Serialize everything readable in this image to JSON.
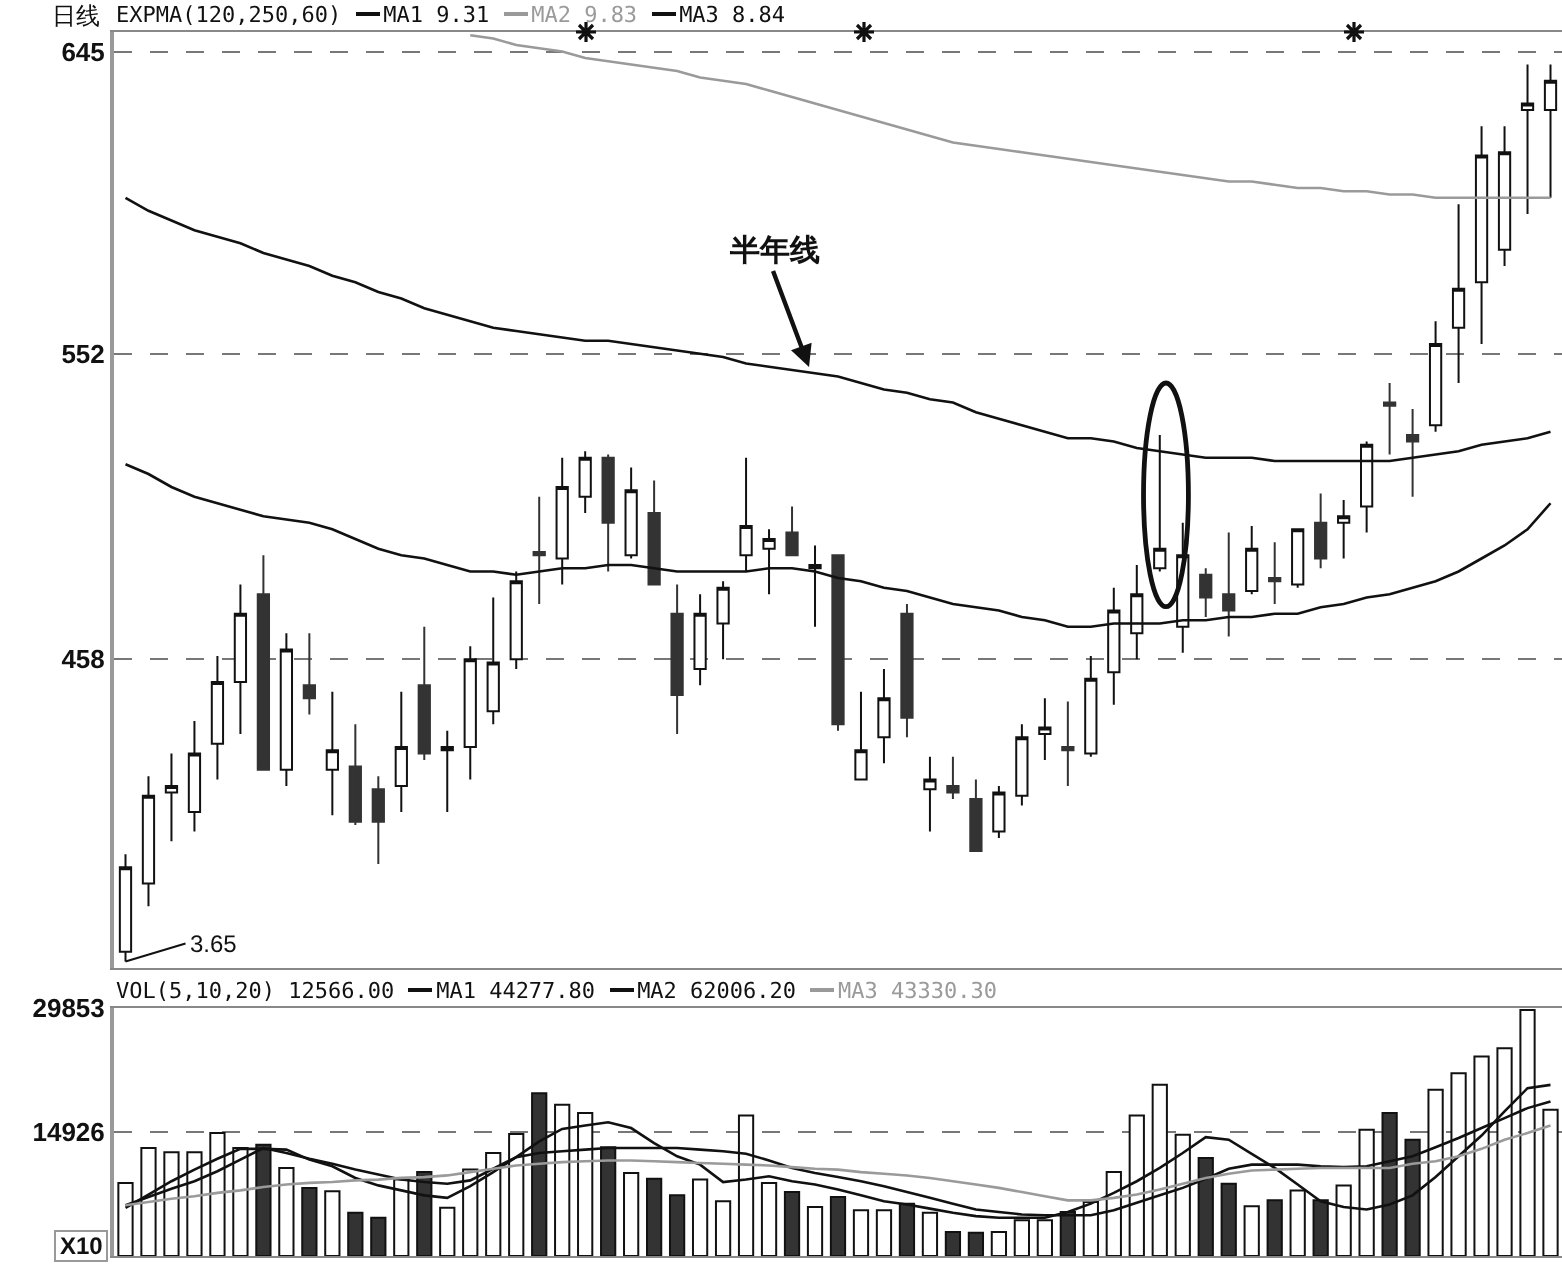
{
  "chart_data": [
    {
      "type": "candlestick",
      "title": "日线",
      "legend_title": "EXPMA(120,250,60)",
      "annotations": [
        "半年线",
        "3.65"
      ],
      "categories": [
        null,
        null,
        null,
        null,
        null,
        null,
        null,
        null,
        null,
        null,
        null,
        null,
        null,
        null,
        null,
        null,
        null,
        null,
        null,
        null,
        null,
        null,
        null,
        null,
        null,
        null,
        null,
        null,
        null,
        null,
        null,
        null,
        null,
        null,
        null,
        null,
        null,
        null,
        null,
        null,
        null,
        null,
        null,
        null,
        null,
        null,
        null,
        null,
        null,
        null,
        null,
        null,
        null,
        null,
        null,
        null,
        null,
        null,
        null,
        null,
        null,
        null,
        null
      ],
      "ohlc": [
        [
          368,
          398,
          365,
          394
        ],
        [
          389,
          422,
          382,
          416
        ],
        [
          417,
          429,
          402,
          419
        ],
        [
          411,
          439,
          405,
          429
        ],
        [
          432,
          459,
          421,
          451
        ],
        [
          451,
          481,
          435,
          472
        ],
        [
          478,
          490,
          424,
          424
        ],
        [
          424,
          466,
          419,
          461
        ],
        [
          450,
          466,
          441,
          446
        ],
        [
          424,
          448,
          410,
          430
        ],
        [
          425,
          438,
          407,
          408
        ],
        [
          418,
          422,
          395,
          408
        ],
        [
          419,
          448,
          411,
          431
        ],
        [
          450,
          468,
          427,
          429
        ],
        [
          430,
          436,
          411,
          431
        ],
        [
          431,
          462,
          421,
          458
        ],
        [
          442,
          477,
          438,
          457
        ],
        [
          458,
          485,
          455,
          482
        ],
        [
          491,
          508,
          475,
          490
        ],
        [
          489,
          520,
          481,
          511
        ],
        [
          508,
          522,
          503,
          520
        ],
        [
          520,
          521,
          485,
          500
        ],
        [
          490,
          517,
          489,
          510
        ],
        [
          503,
          513,
          481,
          481
        ],
        [
          472,
          481,
          435,
          447
        ],
        [
          455,
          478,
          450,
          472
        ],
        [
          469,
          482,
          458,
          480
        ],
        [
          490,
          520,
          485,
          499
        ],
        [
          492,
          498,
          478,
          495
        ],
        [
          497,
          505,
          490,
          490
        ],
        [
          486,
          493,
          468,
          487
        ],
        [
          490,
          490,
          436,
          438
        ],
        [
          421,
          448,
          421,
          430
        ],
        [
          434,
          455,
          426,
          446
        ],
        [
          472,
          475,
          434,
          440
        ],
        [
          418,
          428,
          405,
          421
        ],
        [
          419,
          428,
          415,
          417
        ],
        [
          415,
          421,
          399,
          399
        ],
        [
          405,
          419,
          403,
          417
        ],
        [
          416,
          438,
          413,
          434
        ],
        [
          435,
          446,
          427,
          437
        ],
        [
          431,
          445,
          419,
          430
        ],
        [
          429,
          459,
          428,
          452
        ],
        [
          454,
          480,
          444,
          473
        ],
        [
          466,
          487,
          458,
          478
        ],
        [
          486,
          527,
          485,
          492
        ],
        [
          468,
          500,
          460,
          490
        ],
        [
          484,
          486,
          471,
          477
        ],
        [
          478,
          497,
          465,
          473
        ],
        [
          479,
          499,
          478,
          492
        ],
        [
          483,
          494,
          475,
          482
        ],
        [
          481,
          498,
          480,
          498
        ],
        [
          500,
          509,
          486,
          489
        ],
        [
          500,
          507,
          489,
          502
        ],
        [
          505,
          525,
          497,
          524
        ],
        [
          537,
          543,
          521,
          536
        ],
        [
          527,
          535,
          508,
          525
        ],
        [
          530,
          562,
          528,
          555
        ],
        [
          560,
          598,
          543,
          572
        ],
        [
          574,
          622,
          555,
          613
        ],
        [
          584,
          622,
          579,
          614
        ],
        [
          627,
          641,
          595,
          629
        ],
        [
          627,
          641,
          600,
          636
        ]
      ],
      "series": [
        {
          "type": "line",
          "name": "MA1 9.31",
          "color": "#111111",
          "values": [
            600,
            596,
            593,
            590,
            588,
            586,
            583,
            581,
            579,
            576,
            574,
            571,
            569,
            566,
            564,
            562,
            560,
            559,
            558,
            557,
            556,
            556,
            555,
            554,
            553,
            552,
            551,
            549,
            548,
            547,
            546,
            545,
            543,
            541,
            540,
            538,
            537,
            534,
            532,
            530,
            528,
            526,
            526,
            525,
            523,
            522,
            521,
            520,
            520,
            520,
            519,
            519,
            519,
            519,
            519,
            519,
            520,
            521,
            522,
            524,
            525,
            526,
            528
          ]
        },
        {
          "type": "line",
          "name": "MA2 9.83",
          "color": "#9a9a9a",
          "values": [
            null,
            null,
            null,
            null,
            null,
            null,
            null,
            null,
            null,
            null,
            null,
            null,
            null,
            null,
            null,
            650,
            649,
            647,
            646,
            645,
            643,
            642,
            641,
            640,
            639,
            637,
            636,
            635,
            633,
            631,
            629,
            627,
            625,
            623,
            621,
            619,
            617,
            616,
            615,
            614,
            613,
            612,
            611,
            610,
            609,
            608,
            607,
            606,
            605,
            605,
            604,
            603,
            603,
            602,
            602,
            601,
            601,
            600,
            600,
            600,
            600,
            600,
            600
          ]
        },
        {
          "type": "line",
          "name": "MA3 8.84",
          "color": "#111111",
          "values": [
            518,
            515,
            511,
            508,
            506,
            504,
            502,
            501,
            500,
            498,
            495,
            492,
            490,
            489,
            487,
            485,
            485,
            484,
            485,
            486,
            486,
            487,
            487,
            486,
            485,
            485,
            485,
            485,
            486,
            486,
            485,
            483,
            482,
            480,
            479,
            477,
            475,
            474,
            473,
            471,
            470,
            468,
            468,
            469,
            469,
            469,
            470,
            470,
            471,
            471,
            472,
            472,
            474,
            475,
            477,
            478,
            480,
            482,
            485,
            489,
            493,
            498,
            506
          ]
        }
      ],
      "ylim": [
        363,
        651
      ],
      "yticks": [
        458,
        552,
        645
      ],
      "grid": "y",
      "tick_labels": "y",
      "legend": "top left"
    },
    {
      "type": "bar",
      "legend_title": "VOL(5,10,20) 12566.00",
      "ylabel": "X10",
      "categories": [
        null,
        null,
        null,
        null,
        null,
        null,
        null,
        null,
        null,
        null,
        null,
        null,
        null,
        null,
        null,
        null,
        null,
        null,
        null,
        null,
        null,
        null,
        null,
        null,
        null,
        null,
        null,
        null,
        null,
        null,
        null,
        null,
        null,
        null,
        null,
        null,
        null,
        null,
        null,
        null,
        null,
        null,
        null,
        null,
        null,
        null,
        null,
        null,
        null,
        null,
        null,
        null,
        null,
        null,
        null,
        null,
        null,
        null,
        null,
        null,
        null,
        null,
        null
      ],
      "series": [
        {
          "type": "bar",
          "colors": [
            "#ffffff",
            "#ffffff",
            "#ffffff",
            "#ffffff",
            "#ffffff",
            "#ffffff",
            "#333333",
            "#ffffff",
            "#333333",
            "#ffffff",
            "#333333",
            "#333333",
            "#ffffff",
            "#333333",
            "#ffffff",
            "#ffffff",
            "#ffffff",
            "#ffffff",
            "#333333",
            "#ffffff",
            "#ffffff",
            "#333333",
            "#ffffff",
            "#333333",
            "#333333",
            "#ffffff",
            "#ffffff",
            "#ffffff",
            "#ffffff",
            "#333333",
            "#ffffff",
            "#333333",
            "#ffffff",
            "#ffffff",
            "#333333",
            "#ffffff",
            "#333333",
            "#333333",
            "#ffffff",
            "#ffffff",
            "#ffffff",
            "#333333",
            "#ffffff",
            "#ffffff",
            "#ffffff",
            "#ffffff",
            "#ffffff",
            "#333333",
            "#333333",
            "#ffffff",
            "#333333",
            "#ffffff",
            "#333333",
            "#ffffff",
            "#ffffff",
            "#333333",
            "#333333",
            "#ffffff",
            "#ffffff",
            "#ffffff",
            "#ffffff",
            "#ffffff",
            "#ffffff"
          ],
          "values": [
            8800,
            13000,
            12500,
            12500,
            14800,
            13000,
            13400,
            10600,
            8200,
            7800,
            5200,
            4600,
            9200,
            10100,
            5800,
            10400,
            12400,
            14700,
            19600,
            18200,
            17200,
            13100,
            10000,
            9300,
            7300,
            9200,
            6600,
            16900,
            8800,
            7700,
            5900,
            7100,
            5500,
            5500,
            6300,
            5200,
            2900,
            2800,
            2900,
            4300,
            4300,
            5300,
            6500,
            10100,
            16900,
            20600,
            14600,
            11800,
            8700,
            6000,
            6700,
            7900,
            6700,
            8500,
            15200,
            17200,
            14000,
            20000,
            22000,
            24000,
            25000,
            29600,
            17600
          ]
        },
        {
          "type": "line",
          "name": "MA1 44277.80",
          "color": "#111111",
          "values": [
            5800,
            7400,
            9000,
            10400,
            11700,
            12900,
            12900,
            12800,
            11600,
            10800,
            9400,
            8500,
            7900,
            7300,
            7000,
            8400,
            10100,
            11900,
            13800,
            15300,
            15700,
            16100,
            15400,
            13600,
            12000,
            11000,
            8900,
            9200,
            9600,
            9000,
            8600,
            8000,
            7300,
            6600,
            6200,
            5700,
            5200,
            4800,
            4600,
            4600,
            4600,
            5300,
            6300,
            7600,
            9000,
            10600,
            12400,
            14300,
            14000,
            12300,
            10600,
            8600,
            6600,
            5900,
            5600,
            6200,
            7300,
            9500,
            12000,
            14500,
            17400,
            20200,
            20600
          ]
        },
        {
          "type": "line",
          "name": "MA2 62006.20",
          "color": "#111111",
          "values": [
            6100,
            7100,
            8100,
            9000,
            10200,
            11600,
            13000,
            12400,
            11700,
            11100,
            10400,
            9800,
            9200,
            8900,
            8700,
            9100,
            10500,
            11900,
            12400,
            12600,
            12800,
            13000,
            13000,
            13000,
            13000,
            12800,
            12600,
            12300,
            11500,
            10600,
            10000,
            9500,
            9000,
            8400,
            7700,
            7000,
            6300,
            5600,
            5300,
            5000,
            4900,
            4900,
            4900,
            5500,
            6400,
            7300,
            8200,
            9300,
            10500,
            11000,
            11000,
            11000,
            10800,
            10700,
            10800,
            11400,
            12000,
            13100,
            14200,
            15400,
            16600,
            17800,
            18600
          ]
        },
        {
          "type": "line",
          "name": "MA3 43330.30",
          "color": "#9a9a9a",
          "values": [
            6100,
            6500,
            6900,
            7200,
            7600,
            7900,
            8300,
            8600,
            8800,
            8900,
            9100,
            9200,
            9400,
            9500,
            9700,
            10100,
            10500,
            10900,
            11100,
            11300,
            11400,
            11500,
            11500,
            11400,
            11300,
            11200,
            11100,
            11000,
            10900,
            10700,
            10500,
            10400,
            10100,
            9900,
            9700,
            9400,
            9000,
            8600,
            8200,
            7700,
            7200,
            6700,
            6700,
            7000,
            7400,
            8000,
            8700,
            9400,
            9900,
            10300,
            10400,
            10500,
            10600,
            10600,
            10600,
            10600,
            11100,
            11400,
            12000,
            12900,
            14000,
            14800,
            15700
          ]
        }
      ],
      "ylim": [
        0,
        29853
      ],
      "yticks": [
        14926,
        29853
      ],
      "grid": "y",
      "tick_labels": "y",
      "legend": "top left"
    }
  ]
}
